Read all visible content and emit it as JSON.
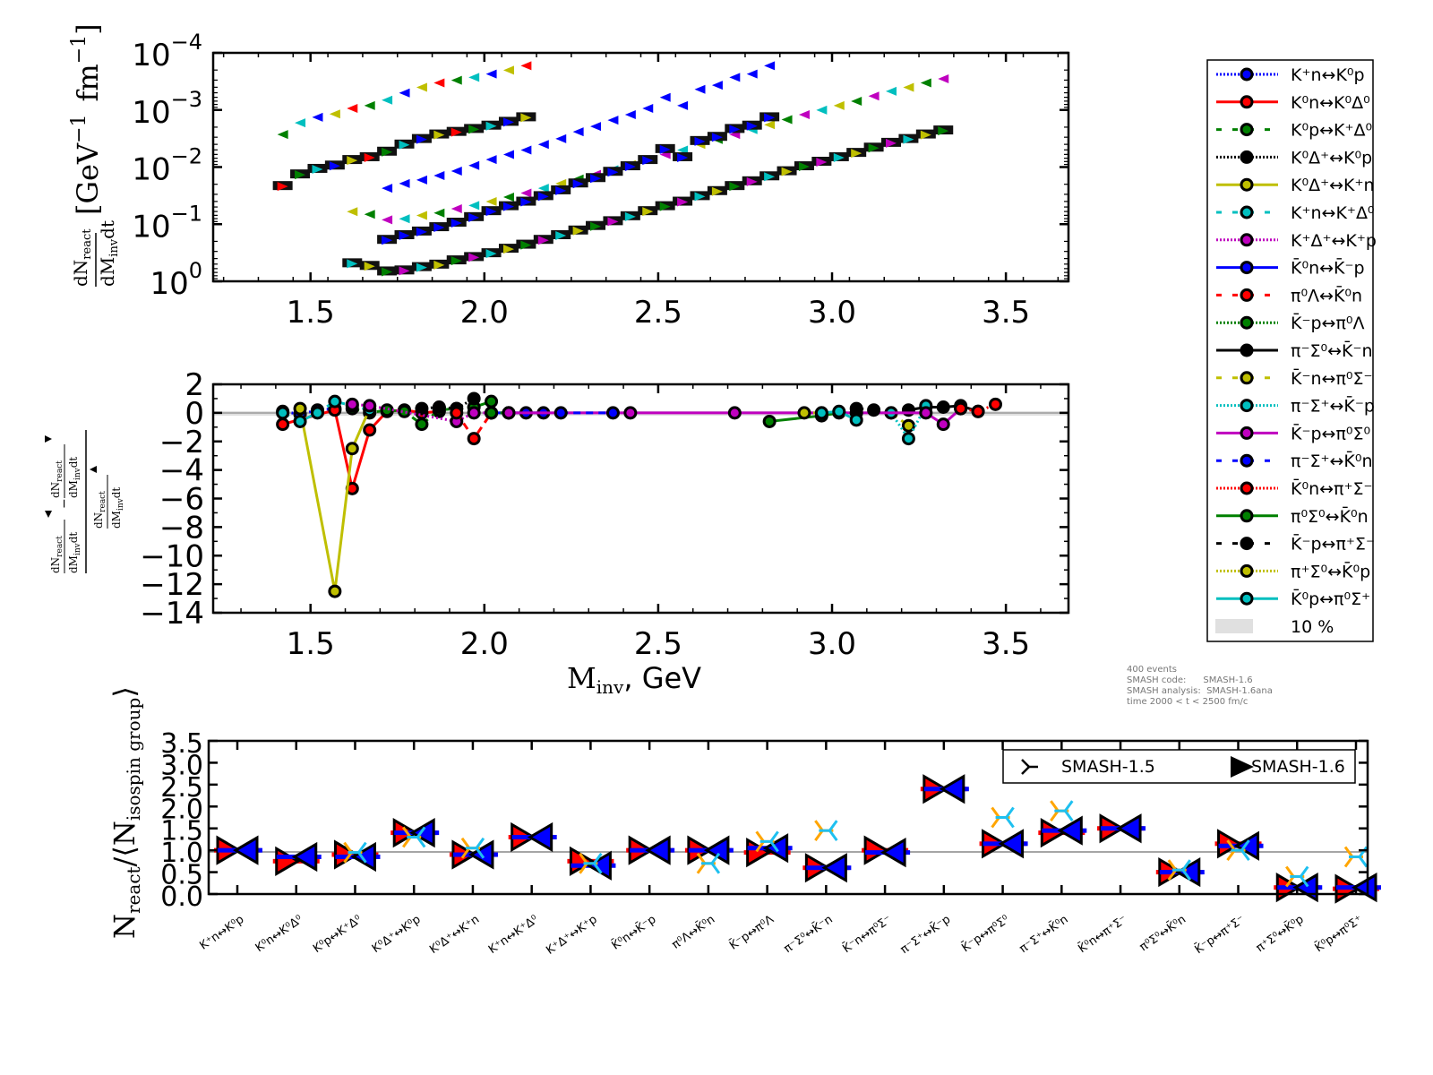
{
  "chart_data": [
    {
      "id": "top",
      "type": "scatter",
      "title": "",
      "xlabel": "",
      "ylabel": "dN_react/dM_inv dt [GeV^-1 fm^-1]",
      "ylabel_fraction_num": "dN",
      "ylabel_fraction_num_sub": "react",
      "ylabel_fraction_den": "dM",
      "ylabel_fraction_den_sub": "inv",
      "ylabel_fraction_den_tail": "dt",
      "ylabel_units": "[GeV",
      "ylabel_units_exp": "−1",
      "ylabel_units_fm": "fm",
      "ylabel_units_fm_exp": "−1",
      "ylabel_units_close": "]",
      "yscale": "log",
      "xlim": [
        1.22,
        3.68
      ],
      "ylim_exp": [
        -4,
        0
      ],
      "xticks": [
        "1.5",
        "2.0",
        "2.5",
        "3.0",
        "3.5"
      ],
      "xtick_values": [
        1.5,
        2.0,
        2.5,
        3.0,
        3.5
      ],
      "yticks": [
        {
          "base": "10",
          "exp": "0"
        },
        {
          "base": "10",
          "exp": "−1"
        },
        {
          "base": "10",
          "exp": "−2"
        },
        {
          "base": "10",
          "exp": "−3"
        },
        {
          "base": "10",
          "exp": "−4"
        }
      ],
      "ytick_exps": [
        0,
        -1,
        -2,
        -3,
        -4
      ],
      "bands": [
        {
          "name": "upper-band",
          "colors": [
            "#00bfbf",
            "#bfbf00",
            "#008000",
            "#bf00bf"
          ],
          "x": [
            1.62,
            1.67,
            1.72,
            1.77,
            1.82,
            1.87,
            1.92,
            1.97,
            2.02,
            2.07,
            2.12,
            2.17,
            2.22,
            2.27,
            2.32,
            2.37,
            2.42,
            2.47,
            2.52,
            2.57,
            2.62,
            2.67,
            2.72,
            2.77,
            2.82,
            2.87,
            2.92,
            2.97,
            3.02,
            3.07,
            3.12,
            3.17,
            3.22,
            3.27,
            3.32
          ],
          "y": [
            0.18,
            0.2,
            0.25,
            0.24,
            0.21,
            0.19,
            0.16,
            0.14,
            0.12,
            0.1,
            0.085,
            0.07,
            0.058,
            0.048,
            0.04,
            0.033,
            0.027,
            0.022,
            0.018,
            0.015,
            0.012,
            0.0098,
            0.008,
            0.0066,
            0.0054,
            0.0044,
            0.0036,
            0.003,
            0.0025,
            0.0021,
            0.0017,
            0.0014,
            0.0012,
            0.001,
            0.00085
          ]
        },
        {
          "name": "middle-band",
          "colors": [
            "#0000ff"
          ],
          "x": [
            1.72,
            1.77,
            1.82,
            1.87,
            1.92,
            1.97,
            2.02,
            2.07,
            2.12,
            2.17,
            2.22,
            2.27,
            2.32,
            2.37,
            2.42,
            2.47,
            2.52,
            2.57,
            2.62,
            2.67,
            2.72,
            2.77,
            2.82
          ],
          "y": [
            0.07,
            0.058,
            0.05,
            0.042,
            0.035,
            0.028,
            0.022,
            0.018,
            0.015,
            0.012,
            0.0095,
            0.0072,
            0.0058,
            0.0045,
            0.0036,
            0.0028,
            0.0018,
            0.0025,
            0.0013,
            0.0011,
            0.0008,
            0.0007,
            0.0005
          ]
        },
        {
          "name": "lower-band",
          "colors": [
            "#ff0000",
            "#008000",
            "#00bfbf",
            "#0000ff",
            "#bfbf00"
          ],
          "x": [
            1.42,
            1.47,
            1.52,
            1.57,
            1.62,
            1.67,
            1.72,
            1.77,
            1.82,
            1.87,
            1.92,
            1.97,
            2.02,
            2.07,
            2.12
          ],
          "y": [
            0.008,
            0.005,
            0.004,
            0.0035,
            0.0028,
            0.0025,
            0.002,
            0.0015,
            0.0012,
            0.001,
            0.0009,
            0.0008,
            0.0007,
            0.0006,
            0.0005
          ]
        }
      ]
    },
    {
      "id": "middle",
      "type": "line",
      "xlabel": "M_inv, GeV",
      "xlabel_main": "M",
      "xlabel_sub": "inv",
      "xlabel_tail": ", GeV",
      "ylabel": "(dN_react/dM_inv dt ▲ − dN_react/dM_inv dt ▼) / dN_react/dM_inv dt ▲",
      "xlim": [
        1.22,
        3.68
      ],
      "ylim": [
        -14,
        2
      ],
      "xticks": [
        "1.5",
        "2.0",
        "2.5",
        "3.0",
        "3.5"
      ],
      "xtick_values": [
        1.5,
        2.0,
        2.5,
        3.0,
        3.5
      ],
      "yticks": [
        "2",
        "0",
        "−2",
        "−4",
        "−6",
        "−8",
        "−10",
        "−12",
        "−14"
      ],
      "ytick_values": [
        2,
        0,
        -2,
        -4,
        -6,
        -8,
        -10,
        -12,
        -14
      ],
      "series": [
        {
          "name": "K⁺n↔K⁰p",
          "color": "#0000ff",
          "x": [
            1.42,
            1.47,
            1.52,
            1.57
          ],
          "y": [
            0.1,
            -0.1,
            0.2,
            0.3
          ]
        },
        {
          "name": "K⁰n↔K⁰Δ⁰",
          "color": "#ff0000",
          "x": [
            1.42,
            1.57,
            1.62,
            1.67,
            1.72,
            1.77,
            1.82,
            1.87
          ],
          "y": [
            -0.8,
            0.2,
            -5.3,
            -1.2,
            0.1,
            0.2,
            0.0,
            0.1
          ]
        },
        {
          "name": "K⁰p↔K⁺Δ⁰",
          "color": "#008000",
          "x": [
            1.62,
            1.67,
            1.72,
            1.77,
            1.82,
            1.87,
            1.92,
            1.97,
            2.02
          ],
          "y": [
            0.3,
            0.0,
            0.2,
            0.1,
            -0.8,
            0.2,
            0.3,
            0.4,
            0.8
          ]
        },
        {
          "name": "K⁰Δ⁺↔K⁰p",
          "color": "#000000",
          "x": [
            1.82,
            1.87,
            1.92,
            1.97
          ],
          "y": [
            0.3,
            0.4,
            0.3,
            1.0
          ]
        },
        {
          "name": "K⁰Δ⁺↔K⁺n",
          "color": "#bfbf00",
          "x": [
            1.47,
            1.57,
            1.62,
            1.67
          ],
          "y": [
            0.3,
            -12.5,
            -2.5,
            0.3
          ]
        },
        {
          "name": "K⁺n↔K⁺Δ⁰",
          "color": "#00bfbf",
          "x": [
            1.42,
            1.47,
            1.52,
            1.57,
            1.62,
            1.67
          ],
          "y": [
            0.0,
            -0.6,
            0.0,
            0.8,
            0.5,
            0.2
          ]
        },
        {
          "name": "K⁺Δ⁺↔K⁺p",
          "color": "#bf00bf",
          "x": [
            1.62,
            1.67,
            1.92,
            1.97,
            2.02
          ],
          "y": [
            0.6,
            0.5,
            -0.6,
            0.0,
            0.0
          ]
        },
        {
          "name": "K̄⁰n↔K̄⁻p",
          "color": "#0000ff",
          "x": [
            2.02,
            2.07,
            2.12,
            2.17
          ],
          "y": [
            0.0,
            0.0,
            0.0,
            0.0
          ]
        },
        {
          "name": "π⁰Λ↔K̄⁰n",
          "color": "#ff0000",
          "x": [
            1.92,
            1.97,
            2.02
          ],
          "y": [
            0.0,
            -1.8,
            0.0
          ]
        },
        {
          "name": "K̄⁻p↔π⁰Λ",
          "color": "#008000",
          "x": [
            2.02,
            2.07
          ],
          "y": [
            0.0,
            0.0
          ]
        },
        {
          "name": "π⁻Σ⁰↔K̄⁻n",
          "color": "#000000",
          "x": [
            3.22,
            3.27,
            3.32,
            3.37,
            3.42
          ],
          "y": [
            0.2,
            0.4,
            0.4,
            0.5,
            0.1
          ]
        },
        {
          "name": "K̄⁻n↔π⁰Σ⁻",
          "color": "#bfbf00",
          "x": [
            3.17,
            3.22
          ],
          "y": [
            0.0,
            -0.9
          ]
        },
        {
          "name": "π⁻Σ⁺↔K̄⁻p",
          "color": "#00bfbf",
          "x": [
            3.17,
            3.22,
            3.27
          ],
          "y": [
            0.0,
            -1.8,
            0.5
          ]
        },
        {
          "name": "K̄⁻p↔π⁰Σ⁰",
          "color": "#bf00bf",
          "x": [
            2.07,
            2.42,
            2.72,
            3.07,
            3.27,
            3.32,
            3.37
          ],
          "y": [
            0.0,
            0.0,
            0.0,
            0.0,
            0.0,
            -0.8,
            0.3
          ]
        },
        {
          "name": "π⁻Σ⁺↔K̄⁰n",
          "color": "#0000ff",
          "x": [
            2.22,
            2.37
          ],
          "y": [
            0.0,
            0.0
          ]
        },
        {
          "name": "K̄⁰n↔π⁺Σ⁻",
          "color": "#ff0000",
          "x": [
            3.37,
            3.42,
            3.47
          ],
          "y": [
            0.3,
            0.1,
            0.6
          ]
        },
        {
          "name": "π⁰Σ⁰↔K̄⁰n",
          "color": "#008000",
          "x": [
            2.82,
            2.97,
            3.02
          ],
          "y": [
            -0.6,
            -0.2,
            0.0
          ]
        },
        {
          "name": "K̄⁻p↔π⁺Σ⁻",
          "color": "#000000",
          "x": [
            3.07,
            3.12
          ],
          "y": [
            0.3,
            0.2
          ]
        },
        {
          "name": "π⁺Σ⁰↔K̄⁰p",
          "color": "#bfbf00",
          "x": [
            2.92,
            2.97
          ],
          "y": [
            0.0,
            0.0
          ]
        },
        {
          "name": "K̄⁰p↔π⁰Σ⁺",
          "color": "#00bfbf",
          "x": [
            2.97,
            3.02,
            3.07
          ],
          "y": [
            0.0,
            0.1,
            -0.5
          ]
        }
      ]
    },
    {
      "id": "bottom",
      "type": "scatter",
      "ylabel": "N_react/⟨N_isospin group⟩",
      "ylabel_main": "N",
      "ylabel_sub": "react",
      "ylabel_mid": "/⟨N",
      "ylabel_sub2": "isospin group",
      "ylabel_close": "⟩",
      "ylim": [
        0,
        3.5
      ],
      "yticks": [
        "3.5",
        "3.0",
        "2.5",
        "2.0",
        "1.5",
        "1.0",
        "0.5",
        "0.0"
      ],
      "ytick_values": [
        3.5,
        3.0,
        2.5,
        2.0,
        1.5,
        1.0,
        0.5,
        0.0
      ],
      "categories": [
        "K⁺n↔K⁰p",
        "K⁰n↔K⁰Δ⁰",
        "K⁰p↔K⁺Δ⁰",
        "K⁰Δ⁺↔K⁰p",
        "K⁰Δ⁺↔K⁺n",
        "K⁺n↔K⁺Δ⁰",
        "K⁺Δ⁺↔K⁺p",
        "K̄⁰n↔K̄⁻p",
        "π⁰Λ↔K̄⁰n",
        "K̄⁻p↔π⁰Λ",
        "π⁻Σ⁰↔K̄⁻n",
        "K̄⁻n↔π⁰Σ⁻",
        "π⁻Σ⁺↔K̄⁻p",
        "K̄⁻p↔π⁰Σ⁰",
        "π⁻Σ⁺↔K̄⁰n",
        "K̄⁰n↔π⁺Σ⁻",
        "π⁰Σ⁰↔K̄⁰n",
        "K̄⁻p↔π⁺Σ⁻",
        "π⁺Σ⁰↔K̄⁰p",
        "K̄⁰p↔π⁰Σ⁺"
      ],
      "series": [
        {
          "name": "SMASH-1.6 forward",
          "marker": "triangle-right",
          "color": "#ff0000",
          "values": [
            1.0,
            0.75,
            0.9,
            1.4,
            0.9,
            1.3,
            0.75,
            1.0,
            1.0,
            0.95,
            0.6,
            1.0,
            2.4,
            1.15,
            1.4,
            1.5,
            0.5,
            1.15,
            0.15,
            0.12
          ]
        },
        {
          "name": "SMASH-1.6 reverse",
          "marker": "triangle-left",
          "color": "#0000ff",
          "values": [
            1.0,
            0.85,
            0.85,
            1.4,
            0.9,
            1.3,
            0.65,
            1.0,
            1.0,
            1.05,
            0.6,
            0.95,
            2.4,
            1.15,
            1.45,
            1.5,
            0.5,
            1.1,
            0.15,
            0.15
          ]
        },
        {
          "name": "SMASH-1.5 forward",
          "marker": "tri-left",
          "color": "#ffa500",
          "values": [
            null,
            null,
            0.95,
            1.3,
            1.05,
            null,
            0.7,
            null,
            0.7,
            1.2,
            1.45,
            null,
            null,
            1.75,
            1.9,
            null,
            0.55,
            1.0,
            0.4,
            0.85
          ]
        },
        {
          "name": "SMASH-1.5 reverse",
          "marker": "tri-left",
          "color": "#1ec0f0",
          "values": [
            null,
            null,
            0.95,
            1.3,
            1.05,
            null,
            0.7,
            null,
            0.7,
            1.2,
            1.45,
            null,
            null,
            1.75,
            1.9,
            null,
            0.55,
            1.0,
            0.4,
            0.85
          ]
        }
      ],
      "legend": [
        {
          "label": "SMASH-1.5",
          "marker": "tri-left"
        },
        {
          "label": "SMASH-1.6",
          "marker": "triangle-right"
        }
      ],
      "legend_position": "top-right"
    }
  ],
  "legend": {
    "position": "right",
    "items": [
      {
        "label": "K⁺n↔K⁰p",
        "color": "#0000ff",
        "style": "dotted"
      },
      {
        "label": "K⁰n↔K⁰Δ⁰",
        "color": "#ff0000",
        "style": "solid"
      },
      {
        "label": "K⁰p↔K⁺Δ⁰",
        "color": "#008000",
        "style": "dashed"
      },
      {
        "label": "K⁰Δ⁺↔K⁰p",
        "color": "#000000",
        "style": "dotted"
      },
      {
        "label": "K⁰Δ⁺↔K⁺n",
        "color": "#bfbf00",
        "style": "solid"
      },
      {
        "label": "K⁺n↔K⁺Δ⁰",
        "color": "#00bfbf",
        "style": "dashed"
      },
      {
        "label": "K⁺Δ⁺↔K⁺p",
        "color": "#bf00bf",
        "style": "dotted"
      },
      {
        "label": "K̄⁰n↔K̄⁻p",
        "color": "#0000ff",
        "style": "solid"
      },
      {
        "label": "π⁰Λ↔K̄⁰n",
        "color": "#ff0000",
        "style": "dashed"
      },
      {
        "label": "K̄⁻p↔π⁰Λ",
        "color": "#008000",
        "style": "dotted"
      },
      {
        "label": "π⁻Σ⁰↔K̄⁻n",
        "color": "#000000",
        "style": "solid"
      },
      {
        "label": "K̄⁻n↔π⁰Σ⁻",
        "color": "#bfbf00",
        "style": "dashed"
      },
      {
        "label": "π⁻Σ⁺↔K̄⁻p",
        "color": "#00bfbf",
        "style": "dotted"
      },
      {
        "label": "K̄⁻p↔π⁰Σ⁰",
        "color": "#bf00bf",
        "style": "solid"
      },
      {
        "label": "π⁻Σ⁺↔K̄⁰n",
        "color": "#0000ff",
        "style": "dashed"
      },
      {
        "label": "K̄⁰n↔π⁺Σ⁻",
        "color": "#ff0000",
        "style": "dotted"
      },
      {
        "label": "π⁰Σ⁰↔K̄⁰n",
        "color": "#008000",
        "style": "solid"
      },
      {
        "label": "K̄⁻p↔π⁺Σ⁻",
        "color": "#000000",
        "style": "dashed"
      },
      {
        "label": "π⁺Σ⁰↔K̄⁰p",
        "color": "#bfbf00",
        "style": "dotted"
      },
      {
        "label": "K̄⁰p↔π⁰Σ⁺",
        "color": "#00bfbf",
        "style": "solid"
      },
      {
        "label": "10 %",
        "color": "#e0e0e0",
        "style": "band"
      }
    ]
  },
  "info": {
    "lines": [
      "400 events",
      "SMASH code:      SMASH-1.6",
      "SMASH analysis:  SMASH-1.6ana",
      "time 2000 < t < 2500 fm/c"
    ]
  }
}
